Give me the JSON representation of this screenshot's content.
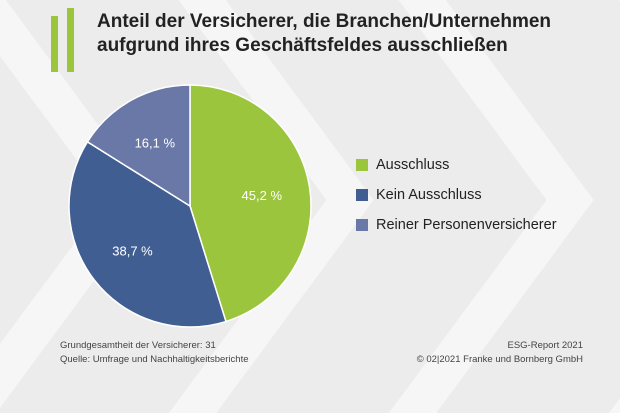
{
  "colors": {
    "accent_green": "#9cc53e",
    "slice_colors": [
      "#9cc53e",
      "#415e93",
      "#6978a6"
    ]
  },
  "chart_data": {
    "type": "pie",
    "title": "Anteil der Versicherer, die Branchen/Unternehmen aufgrund ihres Geschäftsfeldes ausschließen",
    "title_lines": [
      "Anteil der Versicherer, die Branchen/Unternehmen",
      "aufgrund ihres Geschäftsfeldes ausschließen"
    ],
    "categories": [
      "Ausschluss",
      "Kein Ausschluss",
      "Reiner Personenversicherer"
    ],
    "values": [
      45.2,
      38.7,
      16.1
    ],
    "data_labels": [
      "45,2 %",
      "38,7 %",
      "16,1 %"
    ],
    "legend_placement": "right"
  },
  "footer": {
    "left": [
      "Grundgesamtheit der Versicherer: 31",
      "Quelle: Umfrage und Nachhaltigkeitsberichte"
    ],
    "right": [
      "ESG-Report 2021",
      "© 02|2021 Franke und Bornberg GmbH"
    ]
  }
}
